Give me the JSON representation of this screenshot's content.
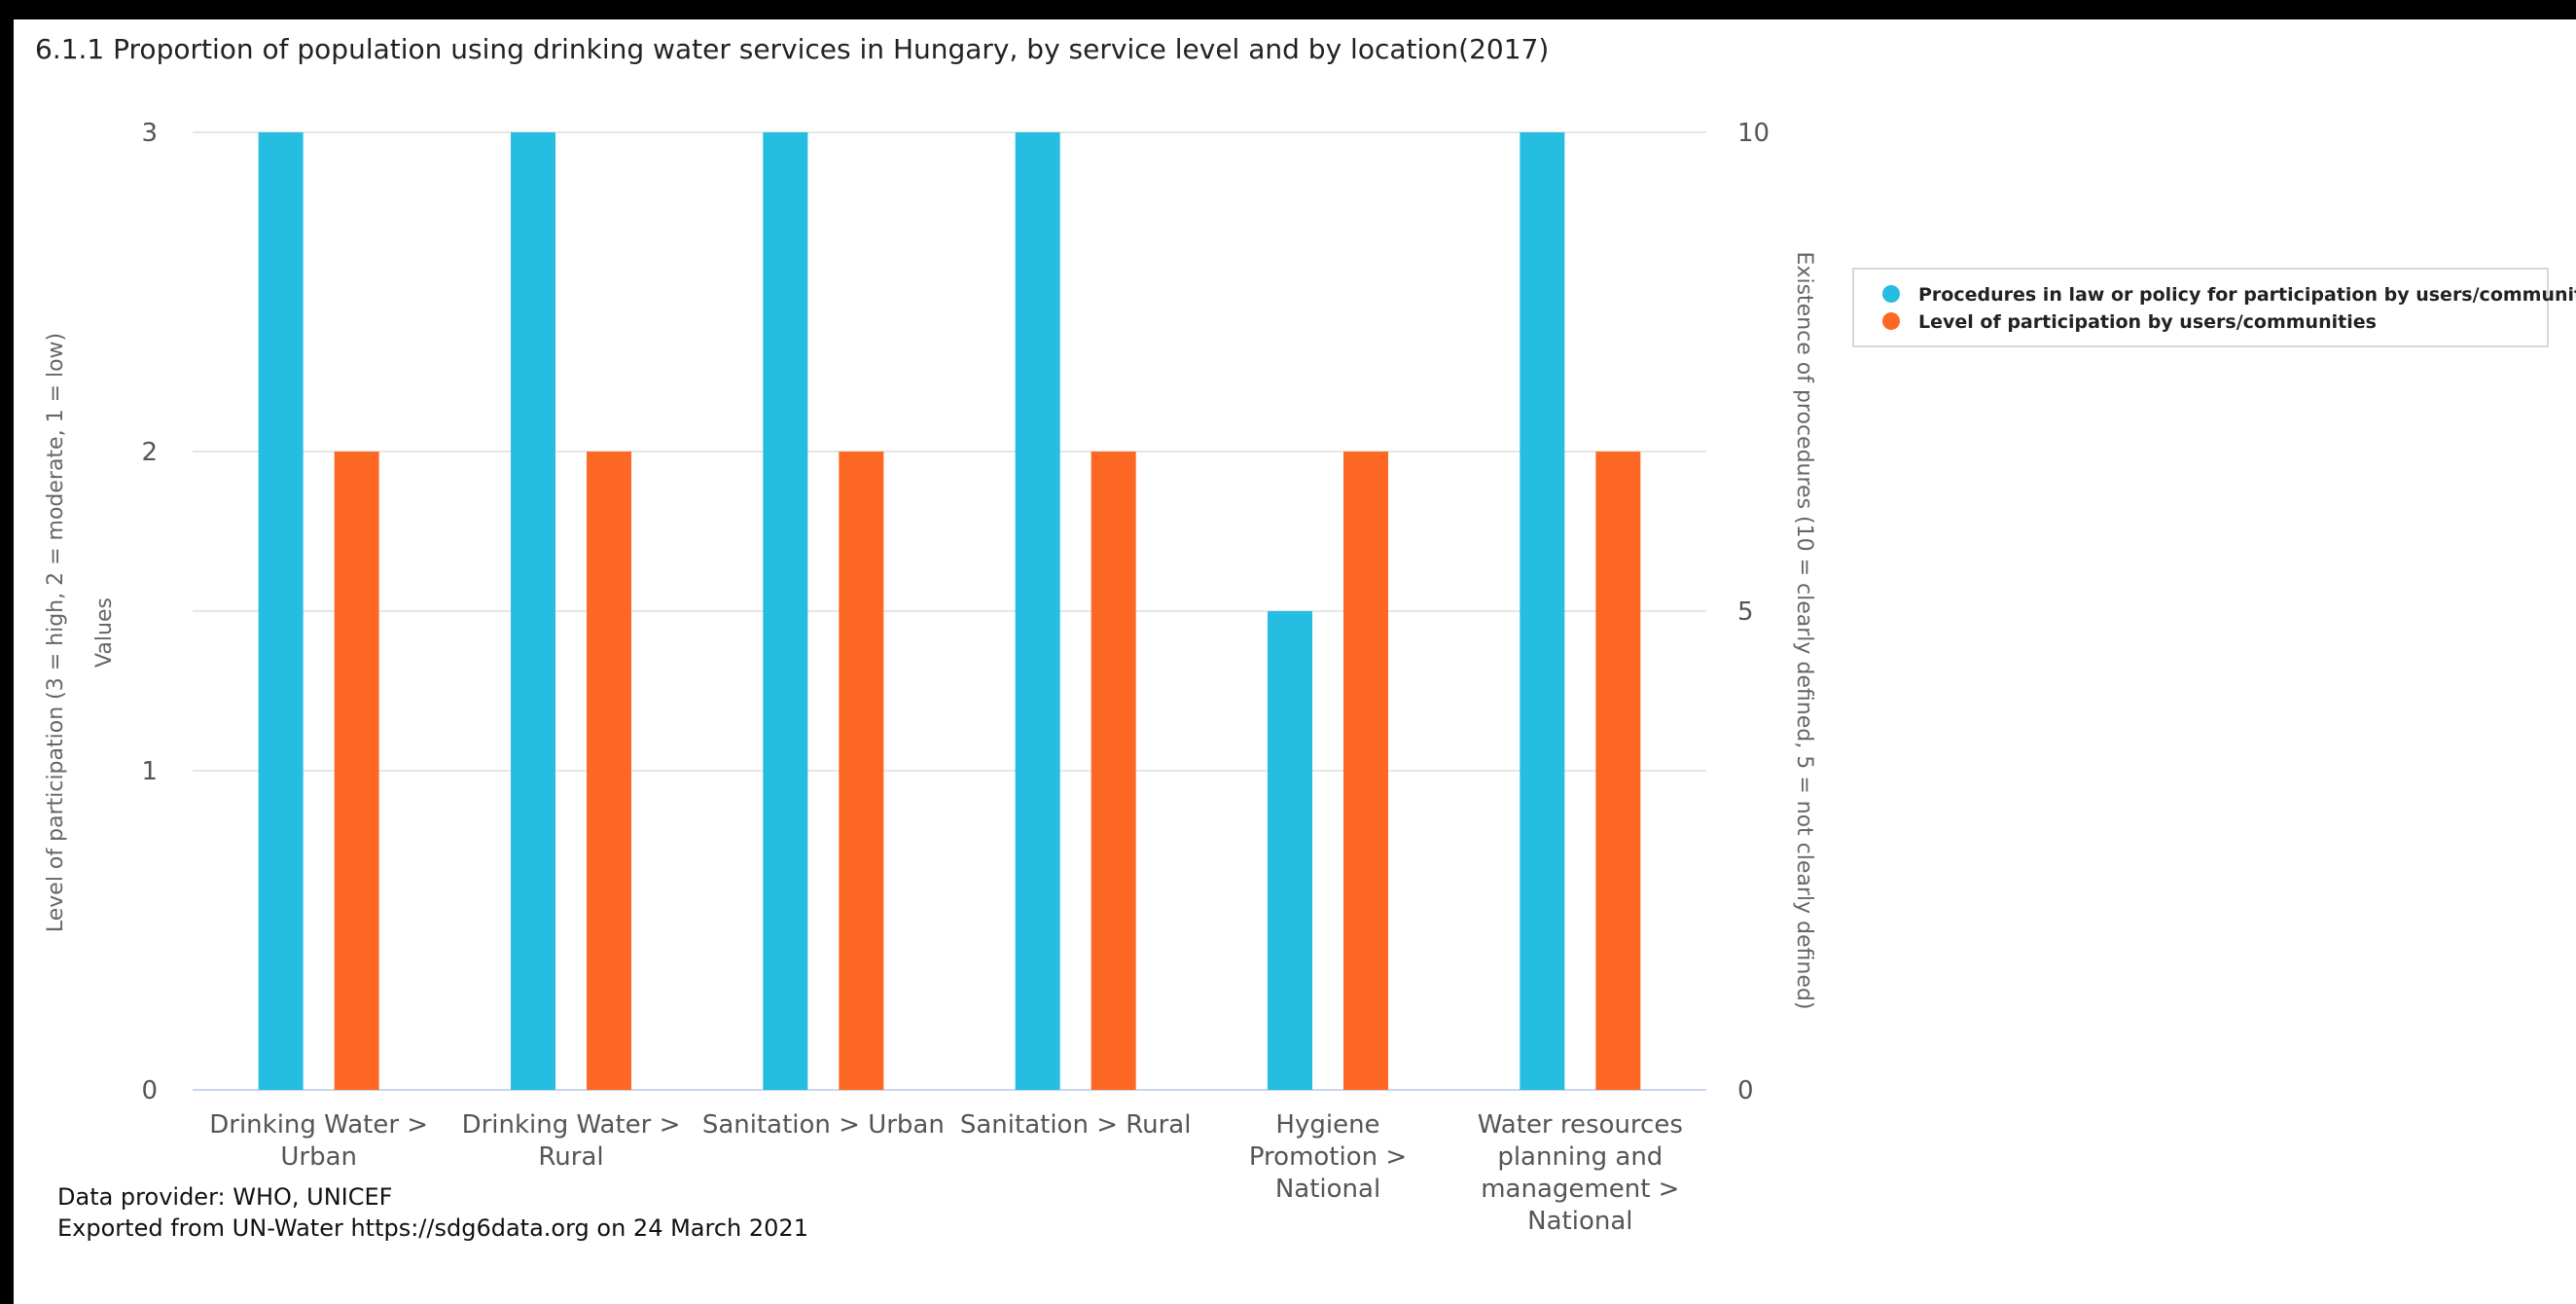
{
  "chart_data": {
    "type": "bar",
    "title": "6.1.1 Proportion of population using drinking water services in Hungary, by service level and by location(2017)",
    "categories": [
      [
        "Drinking Water >",
        "Urban"
      ],
      [
        "Drinking Water >",
        "Rural"
      ],
      [
        "Sanitation > Urban"
      ],
      [
        "Sanitation > Rural"
      ],
      [
        "Hygiene",
        "Promotion >",
        "National"
      ],
      [
        "Water resources",
        "planning and",
        "management >",
        "National"
      ]
    ],
    "series": [
      {
        "name": "Procedures in law or policy for participation by users/communities",
        "color": "#26bde2",
        "axis": "right",
        "values": [
          10,
          10,
          10,
          10,
          5,
          10
        ]
      },
      {
        "name": "Level of participation by users/communities",
        "color": "#fd6925",
        "axis": "left",
        "values": [
          2,
          2,
          2,
          2,
          2,
          2
        ]
      }
    ],
    "y_left": {
      "label": "Level of participation (3 = high, 2 = moderate, 1 = low)",
      "sublabel": "Values",
      "range": [
        0,
        3
      ],
      "ticks": [
        "0",
        "1",
        "2",
        "3"
      ]
    },
    "y_right": {
      "label": "Existence of procedures (10 = clearly defined, 5 = not clearly defined)",
      "range": [
        0,
        10
      ],
      "ticks": [
        "0",
        "5",
        "10"
      ]
    },
    "grid": true,
    "legend_position": "top-right"
  },
  "credits": {
    "provider": "Data provider: WHO, UNICEF",
    "export": "Exported from UN-Water https://sdg6data.org on 24 March 2021"
  }
}
